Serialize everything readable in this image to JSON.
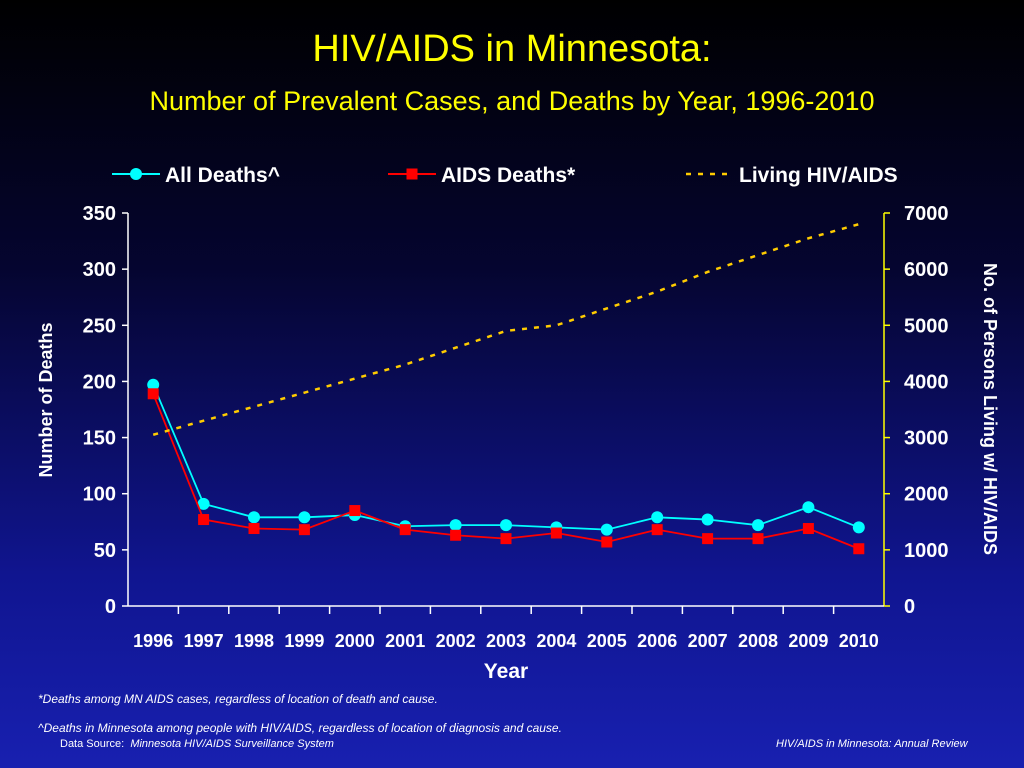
{
  "header": {
    "title": "HIV/AIDS in Minnesota:",
    "subtitle": "Number of Prevalent Cases, and Deaths by Year, 1996-2010"
  },
  "chart_data": {
    "type": "line",
    "categories": [
      "1996",
      "1997",
      "1998",
      "1999",
      "2000",
      "2001",
      "2002",
      "2003",
      "2004",
      "2005",
      "2006",
      "2007",
      "2008",
      "2009",
      "2010"
    ],
    "xlabel": "Year",
    "ylabel": "Number of Deaths",
    "y2label": "No. of Persons Living w/ HIV/AIDS",
    "ylim": [
      0,
      350
    ],
    "y2lim": [
      0,
      7000
    ],
    "yticks": [
      "0",
      "50",
      "100",
      "150",
      "200",
      "250",
      "300",
      "350"
    ],
    "y2ticks": [
      "0",
      "1000",
      "2000",
      "3000",
      "4000",
      "5000",
      "6000",
      "7000"
    ],
    "legend_position": "top",
    "series": [
      {
        "name": "All Deaths^",
        "axis": "left",
        "color": "#00ffff",
        "marker": "circle",
        "values": [
          197,
          91,
          79,
          79,
          81,
          71,
          72,
          72,
          70,
          68,
          79,
          77,
          72,
          88,
          70
        ]
      },
      {
        "name": "AIDS Deaths*",
        "axis": "left",
        "color": "#ff0000",
        "marker": "square",
        "values": [
          189,
          77,
          69,
          68,
          85,
          68,
          63,
          60,
          65,
          57,
          68,
          60,
          60,
          69,
          51
        ]
      },
      {
        "name": "Living HIV/AIDS",
        "axis": "right",
        "color": "#ffcc00",
        "marker": "none",
        "dashed": true,
        "values": [
          3050,
          3300,
          3550,
          3800,
          4050,
          4300,
          4600,
          4900,
          5000,
          5300,
          5600,
          5950,
          6250,
          6550,
          6800
        ]
      }
    ]
  },
  "footnotes": {
    "aids_deaths": "*Deaths among MN AIDS cases, regardless of location of death and cause.",
    "all_deaths": "^Deaths in Minnesota among people with HIV/AIDS, regardless of location of diagnosis and cause."
  },
  "footer": {
    "source_label": "Data Source:",
    "source_value": "Minnesota HIV/AIDS Surveillance System",
    "report": "HIV/AIDS in Minnesota: Annual Review"
  }
}
